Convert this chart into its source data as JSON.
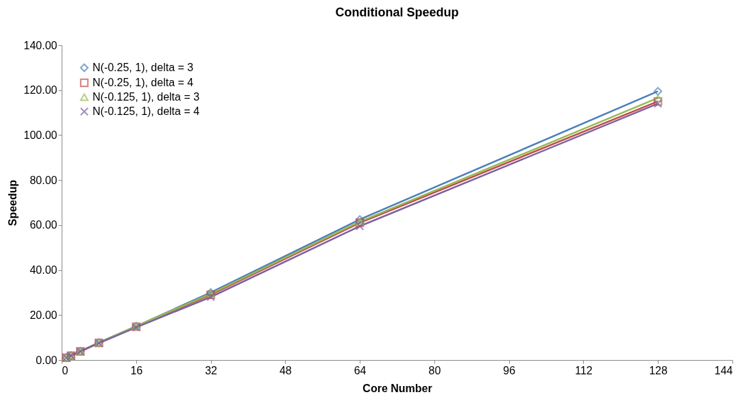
{
  "chart_data": {
    "type": "line",
    "title": "Conditional Speedup",
    "xlabel": "Core Number",
    "ylabel": "Speedup",
    "x": [
      1,
      2,
      4,
      8,
      16,
      32,
      64,
      128
    ],
    "series": [
      {
        "name": "N(-0.25, 1), delta = 3",
        "color": "#4a7ebb",
        "marker": "diamond",
        "values": [
          1.0,
          2.0,
          3.9,
          7.8,
          15.0,
          30.0,
          62.5,
          119.5
        ]
      },
      {
        "name": "N(-0.25, 1), delta = 4",
        "color": "#be4b48",
        "marker": "square",
        "values": [
          1.0,
          1.9,
          3.8,
          7.6,
          14.8,
          29.0,
          61.0,
          115.0
        ]
      },
      {
        "name": "N(-0.125, 1), delta = 3",
        "color": "#98b954",
        "marker": "triangle",
        "values": [
          1.0,
          2.0,
          3.9,
          7.7,
          15.0,
          29.5,
          61.5,
          116.5
        ]
      },
      {
        "name": "N(-0.125, 1), delta = 4",
        "color": "#7d60a0",
        "marker": "cross",
        "values": [
          1.0,
          1.9,
          3.8,
          7.5,
          14.5,
          28.0,
          59.5,
          114.0
        ]
      }
    ],
    "xlim": [
      0,
      144
    ],
    "xticks": [
      0,
      16,
      32,
      48,
      64,
      80,
      96,
      112,
      128,
      144
    ],
    "ylim": [
      0,
      140
    ],
    "yticks": [
      {
        "value": 0,
        "label": "0.00"
      },
      {
        "value": 20,
        "label": "20.00"
      },
      {
        "value": 40,
        "label": "40.00"
      },
      {
        "value": 60,
        "label": "60.00"
      },
      {
        "value": 80,
        "label": "80.00"
      },
      {
        "value": 100,
        "label": "100.00"
      },
      {
        "value": 120,
        "label": "120.00"
      },
      {
        "value": 140,
        "label": "140.00"
      }
    ],
    "grid": false,
    "legend": "top left",
    "line_style": "solid"
  }
}
